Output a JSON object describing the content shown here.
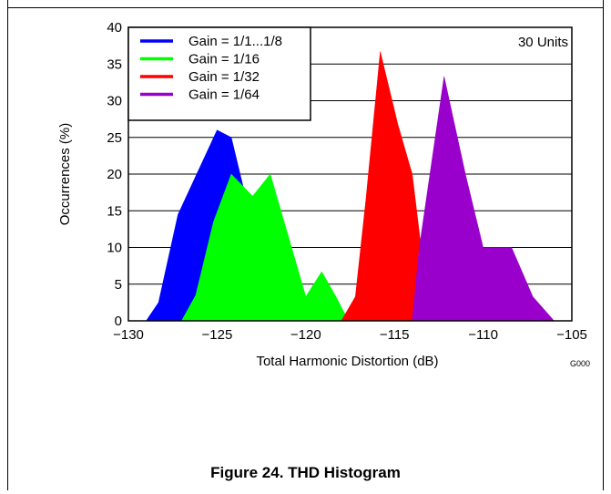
{
  "caption": "Figure 24. THD Histogram",
  "figure_code": "G000",
  "annotation": "30 Units",
  "chart_data": {
    "type": "area",
    "xlabel": "Total Harmonic Distortion (dB)",
    "ylabel": "Occurrences (%)",
    "xlim": [
      -130,
      -105
    ],
    "ylim": [
      0,
      40
    ],
    "xticks": [
      -130,
      -125,
      -120,
      -115,
      -110,
      -105
    ],
    "yticks": [
      0,
      5,
      10,
      15,
      20,
      25,
      30,
      35,
      40
    ],
    "x_tick_labels": [
      "−130",
      "−125",
      "−120",
      "−115",
      "−110",
      "−105"
    ],
    "grid": "horizontal",
    "legend_position": "top-left",
    "series": [
      {
        "name": "Gain = 1/1...1/8",
        "color": "#0000ff",
        "points": [
          [
            -129,
            0
          ],
          [
            -128.3,
            2.5
          ],
          [
            -127.2,
            14.5
          ],
          [
            -125,
            26
          ],
          [
            -124.2,
            25
          ],
          [
            -123.5,
            18
          ],
          [
            -123,
            0
          ]
        ]
      },
      {
        "name": "Gain = 1/16",
        "color": "#00ff00",
        "points": [
          [
            -127,
            0
          ],
          [
            -126.2,
            3.5
          ],
          [
            -125.2,
            13.5
          ],
          [
            -124.2,
            20
          ],
          [
            -123,
            17
          ],
          [
            -122,
            20
          ],
          [
            -120.8,
            10
          ],
          [
            -120,
            3.3
          ],
          [
            -119.1,
            6.7
          ],
          [
            -118.3,
            3.3
          ],
          [
            -117.6,
            0
          ]
        ]
      },
      {
        "name": "Gain = 1/32",
        "color": "#ff0000",
        "points": [
          [
            -118,
            0
          ],
          [
            -117.2,
            3.3
          ],
          [
            -116.6,
            16.7
          ],
          [
            -115.8,
            36.7
          ],
          [
            -114.8,
            26.7
          ],
          [
            -114,
            20
          ],
          [
            -113,
            0
          ]
        ]
      },
      {
        "name": "Gain = 1/64",
        "color": "#9900cc",
        "points": [
          [
            -114,
            0
          ],
          [
            -113.6,
            10
          ],
          [
            -112.2,
            33.3
          ],
          [
            -111,
            20
          ],
          [
            -110,
            10
          ],
          [
            -108.4,
            10
          ],
          [
            -107.2,
            3.3
          ],
          [
            -106,
            0
          ]
        ]
      }
    ]
  }
}
